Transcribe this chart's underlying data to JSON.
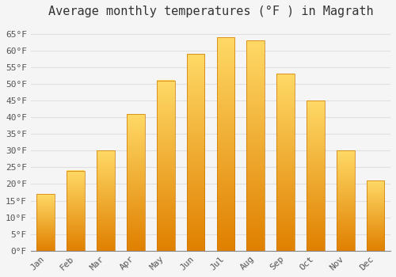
{
  "title": "Average monthly temperatures (°F ) in Magrath",
  "months": [
    "Jan",
    "Feb",
    "Mar",
    "Apr",
    "May",
    "Jun",
    "Jul",
    "Aug",
    "Sep",
    "Oct",
    "Nov",
    "Dec"
  ],
  "values": [
    17,
    24,
    30,
    41,
    51,
    59,
    64,
    63,
    53,
    45,
    30,
    21
  ],
  "bar_color_light": "#FFD966",
  "bar_color_mid": "#FFA500",
  "bar_color_dark": "#E08000",
  "bar_edge_color": "#CC7700",
  "ylim": [
    0,
    68
  ],
  "yticks": [
    0,
    5,
    10,
    15,
    20,
    25,
    30,
    35,
    40,
    45,
    50,
    55,
    60,
    65
  ],
  "background_color": "#f5f5f5",
  "plot_bg_color": "#f5f5f5",
  "grid_color": "#e0e0e0",
  "title_fontsize": 11,
  "tick_fontsize": 8,
  "bar_width": 0.6
}
